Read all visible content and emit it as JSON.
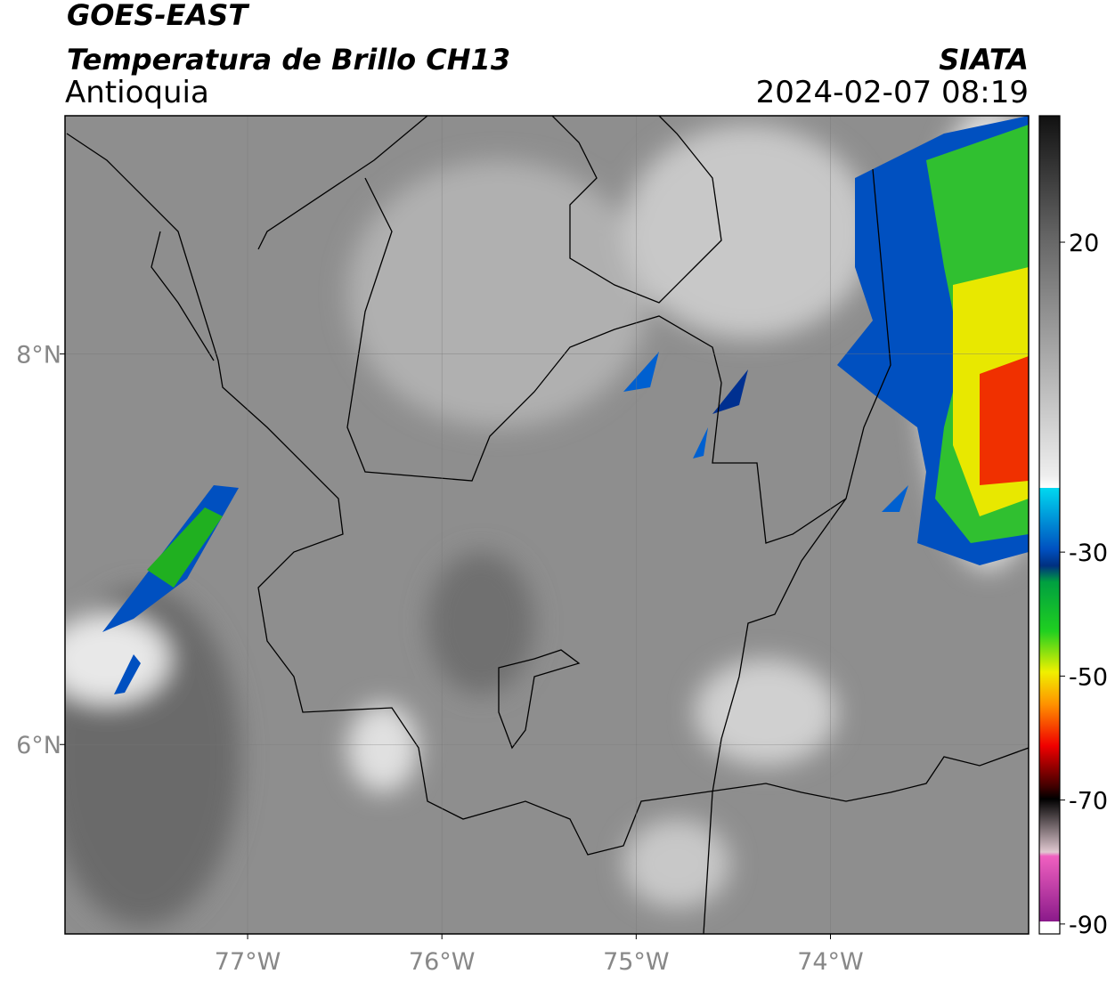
{
  "header": {
    "satellite": "GOES-EAST",
    "product": "Temperatura de Brillo CH13",
    "region": "Antioquia",
    "source": "SIATA",
    "datetime": "2024-02-07 08:19"
  },
  "map": {
    "xlim": [
      -77.94,
      -72.98
    ],
    "ylim": [
      5.03,
      9.22
    ],
    "xticks": [
      {
        "value": -77,
        "label": "77°W"
      },
      {
        "value": -76,
        "label": "76°W"
      },
      {
        "value": -75,
        "label": "75°W"
      },
      {
        "value": -74,
        "label": "74°W"
      }
    ],
    "yticks": [
      {
        "value": 8,
        "label": "8°N"
      },
      {
        "value": 6,
        "label": "6°N"
      }
    ]
  },
  "colorbar": {
    "lim": [
      -91.6,
      40.4
    ],
    "ticks": [
      20,
      -30,
      -50,
      -70,
      -90
    ]
  }
}
